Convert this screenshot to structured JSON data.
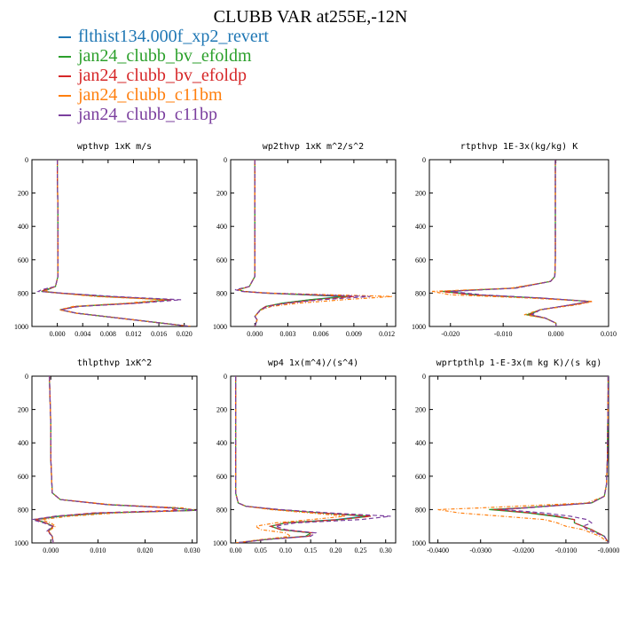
{
  "title": "CLUBB VAR at255E,-12N",
  "colors": {
    "flthist134.000f_xp2_revert": "#1f77b4",
    "jan24_clubb_bv_efoldm": "#2ca02c",
    "jan24_clubb_bv_efoldp": "#d62728",
    "jan24_clubb_c11bm": "#ff7f0e",
    "jan24_clubb_c11bp": "#7b3f9e"
  },
  "legend": [
    {
      "label": "flthist134.000f_xp2_revert",
      "color": "#1f77b4"
    },
    {
      "label": "jan24_clubb_bv_efoldm",
      "color": "#2ca02c"
    },
    {
      "label": "jan24_clubb_bv_efoldp",
      "color": "#d62728"
    },
    {
      "label": "jan24_clubb_c11bm",
      "color": "#ff7f0e"
    },
    {
      "label": "jan24_clubb_c11bp",
      "color": "#7b3f9e"
    }
  ],
  "chart_data": [
    {
      "type": "line",
      "title": "wpthvp  1xK m/s",
      "xlim": [
        -0.004,
        0.022
      ],
      "ylim": [
        0,
        1000
      ],
      "y_inverted": true,
      "xticks": [
        "0.000",
        "0.004",
        "0.008",
        "0.012",
        "0.016",
        "0.020"
      ],
      "xtick_values": [
        0.0,
        0.004,
        0.008,
        0.012,
        0.016,
        0.02
      ],
      "yticks": [
        0,
        200,
        400,
        600,
        800,
        1000
      ],
      "y": [
        0,
        100,
        300,
        500,
        700,
        760,
        780,
        790,
        800,
        820,
        840,
        860,
        880,
        900,
        920,
        960,
        1000
      ],
      "series": [
        {
          "name": "flthist134.000f_xp2_revert",
          "x": [
            0.0,
            0.0,
            0.0001,
            0.0001,
            0.0001,
            -0.0003,
            -0.0015,
            -0.002,
            0.0005,
            0.008,
            0.018,
            0.012,
            0.003,
            0.0005,
            0.003,
            0.012,
            0.021
          ]
        },
        {
          "name": "jan24_clubb_bv_efoldm",
          "x": [
            0.0,
            0.0,
            0.0001,
            0.0001,
            0.0001,
            -0.0003,
            -0.0018,
            -0.0025,
            0.0003,
            0.007,
            0.0175,
            0.012,
            0.003,
            0.0004,
            0.003,
            0.012,
            0.021
          ]
        },
        {
          "name": "jan24_clubb_bv_efoldp",
          "x": [
            0.0,
            0.0,
            0.0001,
            0.0001,
            0.0001,
            -0.0003,
            -0.002,
            -0.0025,
            0.0004,
            0.0075,
            0.018,
            0.0125,
            0.003,
            0.0005,
            0.003,
            0.012,
            0.021
          ]
        },
        {
          "name": "jan24_clubb_c11bm",
          "x": [
            0.0,
            0.0,
            0.0001,
            0.0001,
            0.0001,
            -0.0003,
            -0.0015,
            -0.002,
            0.0002,
            0.006,
            0.017,
            0.011,
            0.0025,
            0.0003,
            0.003,
            0.012,
            0.021
          ]
        },
        {
          "name": "jan24_clubb_c11bp",
          "x": [
            0.0,
            0.0,
            0.0001,
            0.0001,
            0.0001,
            -0.0003,
            -0.0025,
            -0.003,
            0.0006,
            0.009,
            0.0195,
            0.013,
            0.0035,
            0.0006,
            0.003,
            0.012,
            0.021
          ]
        }
      ]
    },
    {
      "type": "line",
      "title": "wp2thvp  1xK m^2/s^2",
      "xlim": [
        -0.0022,
        0.0128
      ],
      "ylim": [
        0,
        1000
      ],
      "y_inverted": true,
      "xticks": [
        "0.000",
        "0.003",
        "0.006",
        "0.009",
        "0.012"
      ],
      "xtick_values": [
        0.0,
        0.003,
        0.006,
        0.009,
        0.012
      ],
      "yticks": [
        0,
        200,
        400,
        600,
        800,
        1000
      ],
      "y": [
        0,
        100,
        300,
        500,
        700,
        760,
        780,
        790,
        800,
        820,
        840,
        860,
        880,
        900,
        940,
        960,
        1000
      ],
      "series": [
        {
          "name": "flthist134.000f_xp2_revert",
          "x": [
            0.0,
            0.0,
            0.0,
            0.0,
            0.0,
            -0.0005,
            -0.0015,
            -0.001,
            0.001,
            0.008,
            0.005,
            0.0025,
            0.001,
            0.0005,
            0.0,
            0.0002,
            0.0
          ]
        },
        {
          "name": "jan24_clubb_bv_efoldm",
          "x": [
            0.0,
            0.0,
            0.0,
            0.0,
            0.0,
            -0.0005,
            -0.0015,
            -0.001,
            0.001,
            0.0085,
            0.005,
            0.0025,
            0.001,
            0.0005,
            0.0,
            0.0002,
            0.0
          ]
        },
        {
          "name": "jan24_clubb_bv_efoldp",
          "x": [
            0.0,
            0.0,
            0.0,
            0.0,
            0.0,
            -0.0005,
            -0.0015,
            -0.001,
            0.001,
            0.009,
            0.0055,
            0.0028,
            0.001,
            0.0005,
            0.0,
            0.0002,
            0.0
          ]
        },
        {
          "name": "jan24_clubb_c11bm",
          "x": [
            0.0,
            0.0,
            0.0,
            0.0,
            0.0,
            -0.0005,
            -0.0015,
            -0.001,
            0.0015,
            0.0125,
            0.008,
            0.004,
            0.0015,
            0.0006,
            0.0,
            0.0002,
            0.0
          ]
        },
        {
          "name": "jan24_clubb_c11bp",
          "x": [
            0.0,
            0.0,
            0.0,
            0.0,
            0.0,
            -0.0005,
            -0.0018,
            -0.0012,
            0.0012,
            0.0105,
            0.006,
            0.003,
            0.0012,
            0.0005,
            0.0,
            0.0002,
            0.0
          ]
        }
      ]
    },
    {
      "type": "line",
      "title": "rtpthvp   1E-3x(kg/kg) K",
      "xlim": [
        -0.024,
        0.01
      ],
      "ylim": [
        0,
        1000
      ],
      "y_inverted": true,
      "xticks": [
        "-0.020",
        "-0.010",
        "0.000",
        "0.010"
      ],
      "xtick_values": [
        -0.02,
        -0.01,
        0.0,
        0.01
      ],
      "yticks": [
        0,
        200,
        400,
        600,
        800,
        1000
      ],
      "y": [
        0,
        200,
        400,
        600,
        700,
        730,
        770,
        790,
        810,
        830,
        850,
        870,
        900,
        930,
        950,
        980,
        1000
      ],
      "series": [
        {
          "name": "flthist134.000f_xp2_revert",
          "x": [
            -0.0001,
            -0.0001,
            -0.0001,
            -0.0001,
            -0.0002,
            -0.001,
            -0.008,
            -0.021,
            -0.015,
            -0.003,
            0.0065,
            0.003,
            -0.003,
            -0.005,
            -0.002,
            0.0,
            0.0
          ]
        },
        {
          "name": "jan24_clubb_bv_efoldm",
          "x": [
            -0.0001,
            -0.0001,
            -0.0001,
            -0.0001,
            -0.0002,
            -0.001,
            -0.008,
            -0.0215,
            -0.016,
            -0.003,
            0.0065,
            0.003,
            -0.003,
            -0.0055,
            -0.002,
            0.0,
            0.0
          ]
        },
        {
          "name": "jan24_clubb_bv_efoldp",
          "x": [
            -0.0001,
            -0.0001,
            -0.0001,
            -0.0001,
            -0.0002,
            -0.001,
            -0.008,
            -0.022,
            -0.016,
            -0.003,
            0.0068,
            0.003,
            -0.003,
            -0.005,
            -0.002,
            0.0,
            0.0
          ]
        },
        {
          "name": "jan24_clubb_c11bm",
          "x": [
            -0.0001,
            -0.0001,
            -0.0001,
            -0.0001,
            -0.0002,
            -0.001,
            -0.0085,
            -0.0235,
            -0.02,
            -0.005,
            0.007,
            0.004,
            -0.003,
            -0.006,
            -0.002,
            0.0,
            0.0
          ]
        },
        {
          "name": "jan24_clubb_c11bp",
          "x": [
            -0.0001,
            -0.0001,
            -0.0001,
            -0.0001,
            -0.0002,
            -0.001,
            -0.0075,
            -0.02,
            -0.014,
            -0.0025,
            0.0062,
            0.0028,
            -0.003,
            -0.0045,
            -0.002,
            0.0,
            0.0
          ]
        }
      ]
    },
    {
      "type": "line",
      "title": "thlpthvp   1xK^2",
      "xlim": [
        -0.004,
        0.031
      ],
      "ylim": [
        0,
        1000
      ],
      "y_inverted": true,
      "xticks": [
        "0.000",
        "0.010",
        "0.020",
        "0.030"
      ],
      "xtick_values": [
        0.0,
        0.01,
        0.02,
        0.03
      ],
      "yticks": [
        0,
        200,
        400,
        600,
        800,
        1000
      ],
      "y": [
        0,
        100,
        300,
        500,
        700,
        740,
        770,
        790,
        805,
        820,
        840,
        860,
        880,
        900,
        930,
        960,
        1000
      ],
      "series": [
        {
          "name": "flthist134.000f_xp2_revert",
          "x": [
            -0.0003,
            -0.0002,
            0.0,
            0.0,
            0.0003,
            0.002,
            0.012,
            0.026,
            0.031,
            0.012,
            0.002,
            -0.003,
            -0.001,
            0.0005,
            -0.0005,
            0.0003,
            0.0005
          ]
        },
        {
          "name": "jan24_clubb_bv_efoldm",
          "x": [
            -0.0003,
            -0.0002,
            0.0,
            0.0,
            0.0003,
            0.002,
            0.012,
            0.026,
            0.031,
            0.011,
            0.0015,
            -0.0035,
            -0.001,
            0.0005,
            -0.0005,
            0.0003,
            0.0005
          ]
        },
        {
          "name": "jan24_clubb_bv_efoldp",
          "x": [
            -0.0003,
            -0.0002,
            0.0,
            0.0,
            0.0003,
            0.002,
            0.012,
            0.025,
            0.027,
            0.009,
            0.001,
            -0.0035,
            -0.001,
            0.0005,
            -0.0005,
            0.0003,
            0.0005
          ]
        },
        {
          "name": "jan24_clubb_c11bm",
          "x": [
            -0.0003,
            -0.0002,
            0.0,
            0.0,
            0.0003,
            0.002,
            0.013,
            0.028,
            0.031,
            0.014,
            0.004,
            -0.002,
            0.0,
            0.001,
            -0.0005,
            0.0003,
            0.0005
          ]
        },
        {
          "name": "jan24_clubb_c11bp",
          "x": [
            -0.0003,
            -0.0002,
            0.0,
            0.0,
            0.0003,
            0.002,
            0.012,
            0.026,
            0.031,
            0.01,
            0.001,
            -0.004,
            -0.0015,
            0.0003,
            -0.0008,
            0.0003,
            0.0005
          ]
        }
      ]
    },
    {
      "type": "line",
      "title": "wp4  1x(m^4)/(s^4)",
      "xlim": [
        -0.01,
        0.32
      ],
      "ylim": [
        0,
        1000
      ],
      "y_inverted": true,
      "xticks": [
        "0.00",
        "0.05",
        "0.10",
        "0.15",
        "0.20",
        "0.25",
        "0.30"
      ],
      "xtick_values": [
        0.0,
        0.05,
        0.1,
        0.15,
        0.2,
        0.25,
        0.3
      ],
      "yticks": [
        0,
        200,
        400,
        600,
        800,
        1000
      ],
      "y": [
        0,
        100,
        300,
        500,
        700,
        760,
        780,
        800,
        820,
        840,
        860,
        880,
        900,
        920,
        940,
        960,
        980,
        1000
      ],
      "series": [
        {
          "name": "flthist134.000f_xp2_revert",
          "x": [
            0.0,
            0.0,
            0.0,
            0.0,
            0.0,
            0.005,
            0.02,
            0.08,
            0.17,
            0.26,
            0.2,
            0.1,
            0.07,
            0.09,
            0.15,
            0.14,
            0.06,
            0.0
          ]
        },
        {
          "name": "jan24_clubb_bv_efoldm",
          "x": [
            0.0,
            0.0,
            0.0,
            0.0,
            0.0,
            0.005,
            0.02,
            0.08,
            0.17,
            0.27,
            0.21,
            0.1,
            0.07,
            0.09,
            0.15,
            0.14,
            0.06,
            0.0
          ]
        },
        {
          "name": "jan24_clubb_bv_efoldp",
          "x": [
            0.0,
            0.0,
            0.0,
            0.0,
            0.0,
            0.005,
            0.02,
            0.08,
            0.17,
            0.27,
            0.21,
            0.1,
            0.07,
            0.09,
            0.155,
            0.145,
            0.06,
            0.0
          ]
        },
        {
          "name": "jan24_clubb_c11bm",
          "x": [
            0.0,
            0.0,
            0.0,
            0.0,
            0.0,
            0.005,
            0.02,
            0.07,
            0.15,
            0.22,
            0.15,
            0.08,
            0.04,
            0.05,
            0.1,
            0.11,
            0.05,
            0.0
          ]
        },
        {
          "name": "jan24_clubb_c11bp",
          "x": [
            0.0,
            0.0,
            0.0,
            0.0,
            0.0,
            0.005,
            0.02,
            0.09,
            0.19,
            0.31,
            0.25,
            0.12,
            0.08,
            0.1,
            0.16,
            0.15,
            0.06,
            0.0
          ]
        }
      ]
    },
    {
      "type": "line",
      "title": "wprtpthlp   1-E-3x(m kg K)/(s kg)",
      "xlim": [
        -0.042,
        0.0
      ],
      "ylim": [
        0,
        1000
      ],
      "y_inverted": true,
      "xticks": [
        "-0.0400",
        "-0.0300",
        "-0.0200",
        "-0.0100",
        "-0.0000"
      ],
      "xtick_values": [
        -0.04,
        -0.03,
        -0.02,
        -0.01,
        0.0
      ],
      "yticks": [
        0,
        200,
        400,
        600,
        800,
        1000
      ],
      "y": [
        0,
        100,
        300,
        500,
        650,
        720,
        760,
        790,
        800,
        820,
        840,
        860,
        880,
        900,
        920,
        960,
        1000
      ],
      "series": [
        {
          "name": "flthist134.000f_xp2_revert",
          "x": [
            -0.0001,
            -0.0001,
            -0.0002,
            -0.0003,
            -0.0005,
            -0.001,
            -0.004,
            -0.02,
            -0.027,
            -0.018,
            -0.012,
            -0.008,
            -0.008,
            -0.006,
            -0.004,
            -0.001,
            0.0
          ]
        },
        {
          "name": "jan24_clubb_bv_efoldm",
          "x": [
            -0.0001,
            -0.0001,
            -0.0002,
            -0.0003,
            -0.0005,
            -0.001,
            -0.004,
            -0.02,
            -0.028,
            -0.019,
            -0.013,
            -0.008,
            -0.008,
            -0.006,
            -0.004,
            -0.001,
            0.0
          ]
        },
        {
          "name": "jan24_clubb_bv_efoldp",
          "x": [
            -0.0001,
            -0.0001,
            -0.0002,
            -0.0003,
            -0.0005,
            -0.001,
            -0.004,
            -0.02,
            -0.027,
            -0.018,
            -0.012,
            -0.008,
            -0.008,
            -0.006,
            -0.004,
            -0.001,
            0.0
          ]
        },
        {
          "name": "jan24_clubb_c11bm",
          "x": [
            -0.0001,
            -0.0001,
            -0.0002,
            -0.0003,
            -0.0005,
            -0.001,
            -0.005,
            -0.03,
            -0.04,
            -0.035,
            -0.025,
            -0.015,
            -0.012,
            -0.01,
            -0.006,
            -0.002,
            0.0
          ]
        },
        {
          "name": "jan24_clubb_c11bp",
          "x": [
            -0.0001,
            -0.0001,
            -0.0002,
            -0.0003,
            -0.0005,
            -0.001,
            -0.004,
            -0.019,
            -0.025,
            -0.015,
            -0.009,
            -0.005,
            -0.004,
            -0.006,
            -0.005,
            -0.001,
            0.0
          ]
        }
      ]
    }
  ]
}
